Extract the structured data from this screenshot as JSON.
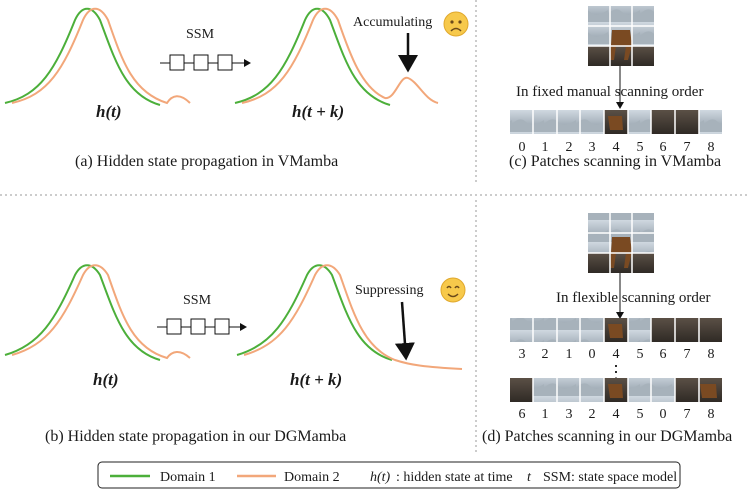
{
  "panels": {
    "a": {
      "caption": "(a) Hidden state propagation in VMamba",
      "ssm_label": "SSM",
      "h_label": "h(t)",
      "hk_label": "h(t + k)",
      "annotation": "Accumulating",
      "emoji": "sad-face-icon"
    },
    "b": {
      "caption": "(b) Hidden state propagation in our DGMamba",
      "ssm_label": "SSM",
      "h_label": "h(t)",
      "hk_label": "h(t + k)",
      "annotation": "Suppressing",
      "emoji": "smile-face-icon"
    },
    "c": {
      "caption": "(c) Patches scanning in VMamba",
      "order_label": "In fixed manual scanning order",
      "sequence": [
        "0",
        "1",
        "2",
        "3",
        "4",
        "5",
        "6",
        "7",
        "8"
      ]
    },
    "d": {
      "caption": "(d) Patches scanning in our DGMamba",
      "order_label": "In flexible scanning order",
      "sequence_1": [
        "3",
        "2",
        "1",
        "0",
        "4",
        "5",
        "6",
        "7",
        "8"
      ],
      "ellipsis": "⋮",
      "sequence_2": [
        "6",
        "1",
        "3",
        "2",
        "4",
        "5",
        "0",
        "7",
        "8"
      ]
    }
  },
  "legend": {
    "domain1": "Domain 1",
    "domain2": "Domain 2",
    "h_symbol": "h(t)",
    "h_desc": ": hidden state at time",
    "t_symbol": "t",
    "ssm_desc": "SSM: state space model"
  },
  "colors": {
    "domain1": "#4caf3a",
    "domain2": "#f2a77a",
    "divider": "#9a9a9a"
  }
}
